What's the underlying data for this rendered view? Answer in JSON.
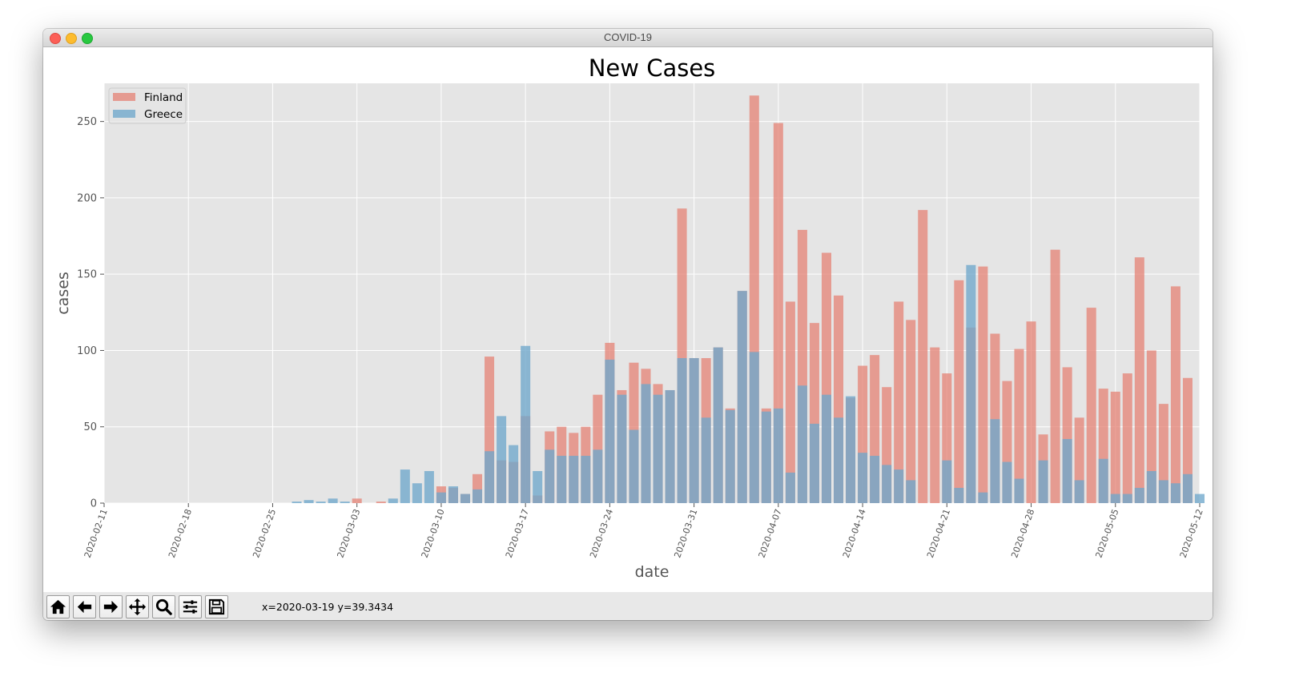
{
  "window": {
    "title": "COVID-19",
    "traffic_lights": [
      "close",
      "minimize",
      "zoom"
    ]
  },
  "toolbar": {
    "buttons": [
      "home-icon",
      "back-icon",
      "forward-icon",
      "pan-icon",
      "zoom-icon",
      "configure-subplots-icon",
      "save-icon"
    ],
    "coordinate_readout": "x=2020-03-19 y=39.3434"
  },
  "colors": {
    "finland": "#e5877a",
    "greece": "#6fa8cc",
    "overlap": "#8c93a8",
    "plot_background": "#e5e5e5",
    "grid": "#ffffff"
  },
  "chart_data": {
    "type": "bar",
    "title": "New Cases",
    "xlabel": "date",
    "ylabel": "cases",
    "legend": {
      "placement": "top-left",
      "entries": [
        "Finland",
        "Greece"
      ]
    },
    "grid": true,
    "x_range": [
      "2020-02-11",
      "2020-05-12"
    ],
    "ylim": [
      0,
      275
    ],
    "yticks": [
      0,
      50,
      100,
      150,
      200,
      250
    ],
    "xticks": [
      "2020-02-11",
      "2020-02-18",
      "2020-02-25",
      "2020-03-03",
      "2020-03-10",
      "2020-03-17",
      "2020-03-24",
      "2020-03-31",
      "2020-04-07",
      "2020-04-14",
      "2020-04-21",
      "2020-04-28",
      "2020-05-05",
      "2020-05-12"
    ],
    "start_date": "2020-02-27",
    "series": [
      {
        "name": "Finland",
        "values": [
          0,
          0,
          0,
          0,
          0,
          3,
          0,
          1,
          0,
          0,
          0,
          0,
          11,
          10,
          6,
          19,
          96,
          28,
          27,
          57,
          5,
          47,
          50,
          46,
          50,
          71,
          105,
          74,
          92,
          88,
          78,
          74,
          193,
          95,
          95,
          102,
          62,
          139,
          267,
          62,
          249,
          132,
          179,
          118,
          164,
          136,
          69,
          90,
          97,
          76,
          132,
          120,
          192,
          102,
          85,
          146,
          115,
          155,
          111,
          80,
          101,
          119,
          45,
          166,
          89,
          56,
          128,
          75,
          73,
          85,
          161,
          100,
          65,
          142,
          82
        ]
      },
      {
        "name": "Greece",
        "values": [
          1,
          2,
          1,
          3,
          1,
          0,
          0,
          0,
          3,
          22,
          13,
          21,
          7,
          11,
          6,
          9,
          34,
          57,
          38,
          103,
          21,
          35,
          31,
          31,
          31,
          35,
          94,
          71,
          48,
          78,
          71,
          74,
          95,
          95,
          56,
          102,
          61,
          139,
          99,
          60,
          62,
          20,
          77,
          52,
          71,
          56,
          70,
          33,
          31,
          25,
          22,
          15,
          0,
          0,
          28,
          10,
          156,
          7,
          55,
          27,
          16,
          0,
          28,
          0,
          42,
          15,
          0,
          29,
          6,
          6,
          10,
          21,
          15,
          13,
          19,
          6
        ]
      }
    ]
  }
}
